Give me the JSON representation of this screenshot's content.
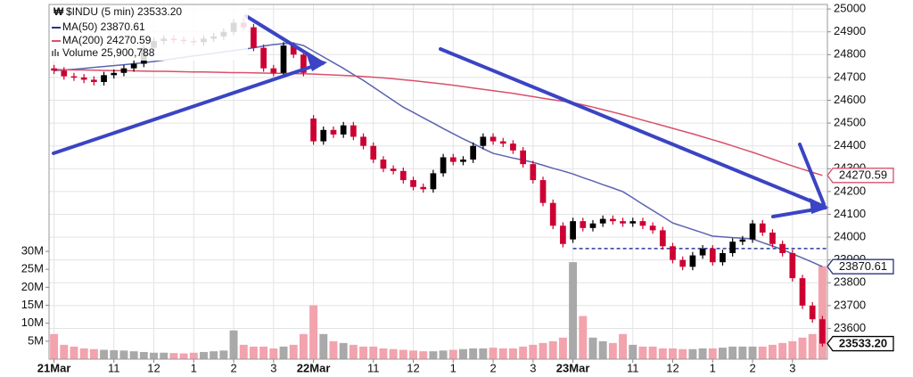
{
  "chart_data": {
    "type": "candlestick",
    "legend": [
      "$INDU (5 min) 23533.20",
      "MA(50) 23870.61",
      "MA(200) 24270.59",
      "Volume 25,900,788"
    ],
    "xlim": [
      -0.5,
      77.5
    ],
    "xticks": [
      {
        "value": 0,
        "label": "21Mar"
      },
      {
        "value": 6,
        "label": "11"
      },
      {
        "value": 10,
        "label": "12"
      },
      {
        "value": 14,
        "label": "1"
      },
      {
        "value": 18,
        "label": "2"
      },
      {
        "value": 22,
        "label": "3"
      },
      {
        "value": 26,
        "label": "22Mar"
      },
      {
        "value": 32,
        "label": "11"
      },
      {
        "value": 36,
        "label": "12"
      },
      {
        "value": 40,
        "label": "1"
      },
      {
        "value": 44,
        "label": "2"
      },
      {
        "value": 48,
        "label": "3"
      },
      {
        "value": 52,
        "label": "23Mar"
      },
      {
        "value": 58,
        "label": "11"
      },
      {
        "value": 62,
        "label": "12"
      },
      {
        "value": 66,
        "label": "1"
      },
      {
        "value": 70,
        "label": "2"
      },
      {
        "value": 74,
        "label": "3"
      }
    ],
    "ylim": [
      23465,
      25020
    ],
    "yticks": [
      23600,
      23700,
      23800,
      23900,
      24000,
      24100,
      24200,
      24300,
      24400,
      24500,
      24600,
      24700,
      24800,
      24900,
      25000
    ],
    "y2lim": [
      0,
      98.7
    ],
    "y2ticks": [
      {
        "value": 5,
        "label": "5M"
      },
      {
        "value": 10,
        "label": "10M"
      },
      {
        "value": 15,
        "label": "15M"
      },
      {
        "value": 20,
        "label": "20M"
      },
      {
        "value": 25,
        "label": "25M"
      },
      {
        "value": 30,
        "label": "30M"
      }
    ],
    "grid": true,
    "up_color": "#000000",
    "down_color": "#cc0033",
    "volume_up_color": "#a9a9a9",
    "volume_down_color": "#f2a3ad",
    "open": [
      24740,
      24730,
      24705,
      24700,
      24690,
      24680,
      24710,
      24720,
      24740,
      24760,
      24830,
      24860,
      24870,
      24865,
      24860,
      24855,
      24870,
      24880,
      24900,
      24940,
      24920,
      24830,
      24740,
      24720,
      24840,
      24800,
      24520,
      24420,
      24470,
      24450,
      24490,
      24440,
      24400,
      24340,
      24300,
      24290,
      24250,
      24220,
      24210,
      24280,
      24350,
      24330,
      24340,
      24400,
      24440,
      24420,
      24410,
      24380,
      24320,
      24250,
      24150,
      24050,
      23990,
      24070,
      24040,
      24060,
      24080,
      24070,
      24060,
      24070,
      24050,
      24030,
      23960,
      23900,
      23870,
      23920,
      23950,
      23890,
      23930,
      23980,
      23990,
      24060,
      24020,
      23970,
      23930,
      23820,
      23700,
      23640
    ],
    "high": [
      24755,
      24745,
      24720,
      24715,
      24705,
      24725,
      24735,
      24755,
      24775,
      24845,
      24875,
      24885,
      24885,
      24880,
      24875,
      24885,
      24895,
      24915,
      24955,
      24960,
      24935,
      24845,
      24755,
      24855,
      24855,
      24815,
      24535,
      24485,
      24485,
      24505,
      24505,
      24455,
      24415,
      24355,
      24315,
      24305,
      24265,
      24235,
      24295,
      24365,
      24365,
      24355,
      24415,
      24455,
      24455,
      24435,
      24425,
      24395,
      24335,
      24265,
      24165,
      24065,
      24085,
      24085,
      24075,
      24095,
      24095,
      24085,
      24085,
      24085,
      24065,
      24045,
      23975,
      23915,
      23935,
      23965,
      23965,
      23945,
      23995,
      24005,
      24075,
      24075,
      24035,
      23985,
      23945,
      23835,
      23715,
      23655
    ],
    "low": [
      24715,
      24690,
      24685,
      24675,
      24665,
      24665,
      24695,
      24705,
      24725,
      24745,
      24815,
      24845,
      24850,
      24845,
      24840,
      24840,
      24855,
      24865,
      24885,
      24905,
      24815,
      24725,
      24705,
      24705,
      24785,
      24705,
      24405,
      24405,
      24435,
      24435,
      24425,
      24385,
      24325,
      24285,
      24275,
      24235,
      24205,
      24195,
      24195,
      24265,
      24315,
      24315,
      24325,
      24385,
      24405,
      24395,
      24365,
      24305,
      24235,
      24135,
      24035,
      23955,
      23975,
      24025,
      24025,
      24045,
      24055,
      24045,
      24045,
      24035,
      24015,
      23945,
      23885,
      23855,
      23855,
      23905,
      23875,
      23875,
      23915,
      23965,
      23975,
      24005,
      23955,
      23915,
      23805,
      23685,
      23625,
      23520
    ],
    "close": [
      24730,
      24705,
      24700,
      24690,
      24680,
      24710,
      24720,
      24740,
      24760,
      24830,
      24860,
      24870,
      24865,
      24860,
      24855,
      24870,
      24880,
      24900,
      24940,
      24920,
      24830,
      24740,
      24720,
      24840,
      24800,
      24720,
      24420,
      24470,
      24450,
      24490,
      24440,
      24400,
      24340,
      24300,
      24290,
      24250,
      24220,
      24210,
      24280,
      24350,
      24330,
      24340,
      24400,
      24440,
      24420,
      24410,
      24380,
      24320,
      24250,
      24150,
      24050,
      23970,
      24070,
      24040,
      24060,
      24080,
      24070,
      24060,
      24070,
      24050,
      24030,
      23960,
      23900,
      23870,
      23920,
      23950,
      23890,
      23930,
      23980,
      23990,
      24060,
      24020,
      23970,
      23930,
      23820,
      23700,
      23640,
      23533.2
    ],
    "volume": [
      7.0,
      4.0,
      3.5,
      3.0,
      2.8,
      2.6,
      2.5,
      2.4,
      2.2,
      2.0,
      1.8,
      1.8,
      1.7,
      1.6,
      1.8,
      2.0,
      2.2,
      2.4,
      8.0,
      4.0,
      3.5,
      3.5,
      3.0,
      3.5,
      4.0,
      7.0,
      15.0,
      7.0,
      5.0,
      4.5,
      4.0,
      3.5,
      3.5,
      3.0,
      2.8,
      2.6,
      2.4,
      2.2,
      2.2,
      2.4,
      2.6,
      2.8,
      3.0,
      3.0,
      3.2,
      3.0,
      3.0,
      3.5,
      4.0,
      4.5,
      5.0,
      6.0,
      27.0,
      12.0,
      6.0,
      5.0,
      4.5,
      7.0,
      4.0,
      3.5,
      3.5,
      3.0,
      3.0,
      2.8,
      2.8,
      3.0,
      3.0,
      3.2,
      3.5,
      3.5,
      3.5,
      3.5,
      4.0,
      4.5,
      5.0,
      6.0,
      7.0,
      25.900788
    ],
    "series": [
      {
        "name": "MA(50)",
        "color": "#5b63b0",
        "values": [
          24730,
          24733,
          24736,
          24740,
          24744,
          24748,
          24752,
          24756,
          24760,
          24765,
          24770,
          24776,
          24782,
          24788,
          24794,
          24800,
          24806,
          24812,
          24818,
          24824,
          24830,
          24838,
          24844,
          24848,
          24850,
          24840,
          24815,
          24790,
          24765,
          24740,
          24713,
          24687,
          24658,
          24628,
          24599,
          24570,
          24547,
          24523,
          24500,
          24476,
          24453,
          24431,
          24410,
          24388,
          24367,
          24357,
          24347,
          24338,
          24328,
          24315,
          24302,
          24290,
          24277,
          24261,
          24246,
          24230,
          24215,
          24199,
          24172,
          24144,
          24117,
          24090,
          24062,
          24048,
          24033,
          24019,
          24004,
          24001,
          23998,
          23995,
          23992,
          23976,
          23961,
          23945,
          23927,
          23909,
          23890,
          23870.61
        ]
      },
      {
        "name": "MA(200)",
        "color": "#d9506a",
        "values": [
          24735,
          24734,
          24733,
          24733,
          24732,
          24731,
          24730,
          24730,
          24729,
          24728,
          24727,
          24727,
          24726,
          24725,
          24724,
          24724,
          24723,
          24722,
          24721,
          24721,
          24720,
          24719,
          24718,
          24718,
          24717,
          24716,
          24715,
          24713,
          24711,
          24709,
          24707,
          24704,
          24701,
          24698,
          24694,
          24690,
          24686,
          24681,
          24676,
          24671,
          24666,
          24660,
          24654,
          24648,
          24642,
          24636,
          24630,
          24623,
          24616,
          24609,
          24602,
          24596,
          24590,
          24580,
          24570,
          24559,
          24548,
          24537,
          24525,
          24513,
          24501,
          24489,
          24477,
          24465,
          24453,
          24440,
          24427,
          24414,
          24400,
          24386,
          24372,
          24357,
          24342,
          24327,
          24312,
          24298,
          24284,
          24270.59
        ]
      }
    ],
    "last_labels": [
      {
        "value": 24270.59,
        "label": "24270.59",
        "color": "#d9506a"
      },
      {
        "value": 23870.61,
        "label": "23870.61",
        "color": "#2a3580"
      },
      {
        "value": 23533.2,
        "label": "23533.20",
        "color": "#000000"
      }
    ],
    "hline": {
      "value": 23950,
      "from": 52,
      "color": "#2a3a9a"
    }
  }
}
